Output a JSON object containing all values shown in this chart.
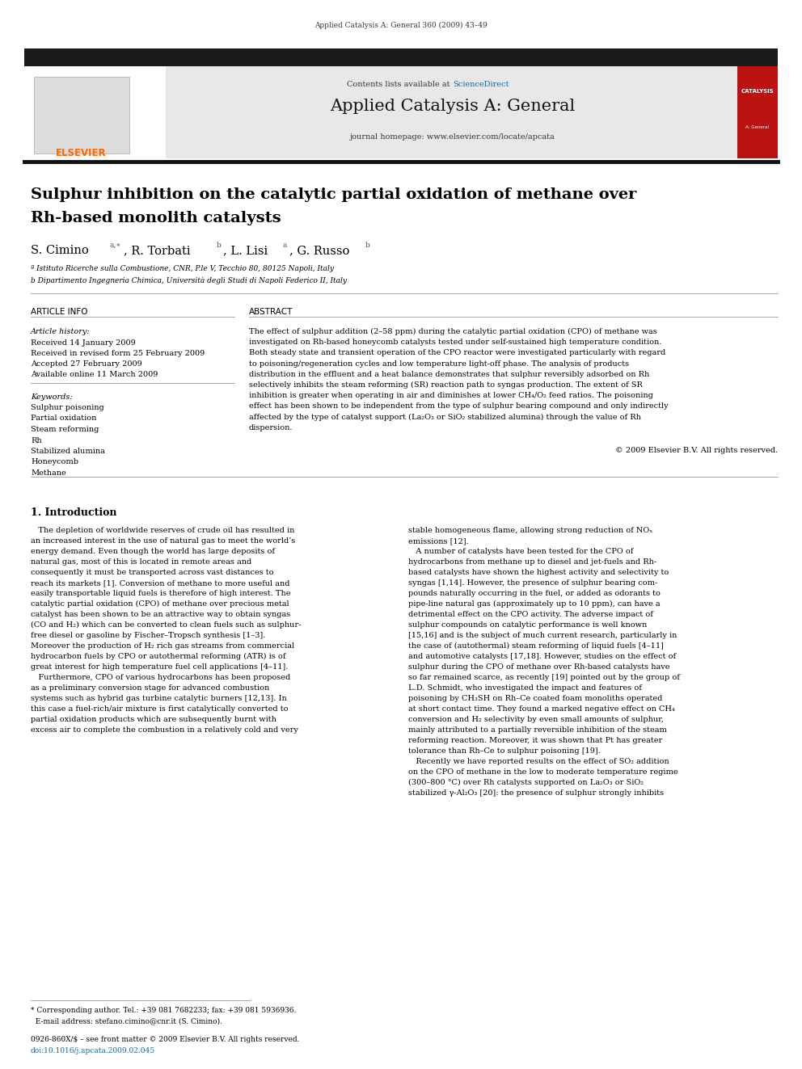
{
  "page_width": 9.92,
  "page_height": 13.23,
  "background_color": "#ffffff",
  "top_bar_color": "#1a1a1a",
  "header_bg_color": "#e8e8e8",
  "journal_title": "Applied Catalysis A: General",
  "journal_url": "journal homepage: www.elsevier.com/locate/apcata",
  "contents_text": "Contents lists available at ",
  "sciencedirect_text": "ScienceDirect",
  "sciencedirect_color": "#1a6496",
  "citation_text": "Applied Catalysis A: General 360 (2009) 43–49",
  "article_title_line1": "Sulphur inhibition on the catalytic partial oxidation of methane over",
  "article_title_line2": "Rh-based monolith catalysts",
  "affil_a": "ª Istituto Ricerche sulla Combustione, CNR, P.le V, Tecchio 80, 80125 Napoli, Italy",
  "affil_b": "b Dipartimento Ingegneria Chimica, Università degli Studi di Napoli Federico II, Italy",
  "article_info_header": "ARTICLE INFO",
  "abstract_header": "ABSTRACT",
  "article_history_label": "Article history:",
  "received": "Received 14 January 2009",
  "received_revised": "Received in revised form 25 February 2009",
  "accepted": "Accepted 27 February 2009",
  "available": "Available online 11 March 2009",
  "keywords_label": "Keywords:",
  "keywords": [
    "Sulphur poisoning",
    "Partial oxidation",
    "Steam reforming",
    "Rh",
    "Stabilized alumina",
    "Honeycomb",
    "Methane"
  ],
  "copyright_text": "© 2009 Elsevier B.V. All rights reserved.",
  "issn_text": "0926-860X/$ – see front matter © 2009 Elsevier B.V. All rights reserved.",
  "doi_text": "doi:10.1016/j.apcata.2009.02.045",
  "abstract_lines": [
    "The effect of sulphur addition (2–58 ppm) during the catalytic partial oxidation (CPO) of methane was",
    "investigated on Rh-based honeycomb catalysts tested under self-sustained high temperature condition.",
    "Both steady state and transient operation of the CPO reactor were investigated particularly with regard",
    "to poisoning/regeneration cycles and low temperature light-off phase. The analysis of products",
    "distribution in the effluent and a heat balance demonstrates that sulphur reversibly adsorbed on Rh",
    "selectively inhibits the steam reforming (SR) reaction path to syngas production. The extent of SR",
    "inhibition is greater when operating in air and diminishes at lower CH₄/O₂ feed ratios. The poisoning",
    "effect has been shown to be independent from the type of sulphur bearing compound and only indirectly",
    "affected by the type of catalyst support (La₂O₃ or SiO₂ stabilized alumina) through the value of Rh",
    "dispersion."
  ],
  "intro_col1_lines": [
    "   The depletion of worldwide reserves of crude oil has resulted in",
    "an increased interest in the use of natural gas to meet the world’s",
    "energy demand. Even though the world has large deposits of",
    "natural gas, most of this is located in remote areas and",
    "consequently it must be transported across vast distances to",
    "reach its markets [1]. Conversion of methane to more useful and",
    "easily transportable liquid fuels is therefore of high interest. The",
    "catalytic partial oxidation (CPO) of methane over precious metal",
    "catalyst has been shown to be an attractive way to obtain syngas",
    "(CO and H₂) which can be converted to clean fuels such as sulphur-",
    "free diesel or gasoline by Fischer–Tropsch synthesis [1–3].",
    "Moreover the production of H₂ rich gas streams from commercial",
    "hydrocarbon fuels by CPO or autothermal reforming (ATR) is of",
    "great interest for high temperature fuel cell applications [4–11].",
    "   Furthermore, CPO of various hydrocarbons has been proposed",
    "as a preliminary conversion stage for advanced combustion",
    "systems such as hybrid gas turbine catalytic burners [12,13]. In",
    "this case a fuel-rich/air mixture is first catalytically converted to",
    "partial oxidation products which are subsequently burnt with",
    "excess air to complete the combustion in a relatively cold and very"
  ],
  "intro_col2_lines": [
    "stable homogeneous flame, allowing strong reduction of NOₓ",
    "emissions [12].",
    "   A number of catalysts have been tested for the CPO of",
    "hydrocarbons from methane up to diesel and jet-fuels and Rh-",
    "based catalysts have shown the highest activity and selectivity to",
    "syngas [1,14]. However, the presence of sulphur bearing com-",
    "pounds naturally occurring in the fuel, or added as odorants to",
    "pipe-line natural gas (approximately up to 10 ppm), can have a",
    "detrimental effect on the CPO activity. The adverse impact of",
    "sulphur compounds on catalytic performance is well known",
    "[15,16] and is the subject of much current research, particularly in",
    "the case of (autothermal) steam reforming of liquid fuels [4–11]",
    "and automotive catalysts [17,18]. However, studies on the effect of",
    "sulphur during the CPO of methane over Rh-based catalysts have",
    "so far remained scarce, as recently [19] pointed out by the group of",
    "L.D. Schmidt, who investigated the impact and features of",
    "poisoning by CH₃SH on Rh–Ce coated foam monoliths operated",
    "at short contact time. They found a marked negative effect on CH₄",
    "conversion and H₂ selectivity by even small amounts of sulphur,",
    "mainly attributed to a partially reversible inhibition of the steam",
    "reforming reaction. Moreover, it was shown that Pt has greater",
    "tolerance than Rh–Ce to sulphur poisoning [19].",
    "   Recently we have reported results on the effect of SO₂ addition",
    "on the CPO of methane in the low to moderate temperature regime",
    "(300–800 °C) over Rh catalysts supported on La₂O₃ or SiO₂",
    "stabilized γ-Al₂O₃ [20]: the presence of sulphur strongly inhibits"
  ],
  "footer_lines": [
    "* Corresponding author. Tel.: +39 081 7682233; fax: +39 081 5936936.",
    "  E-mail address: stefano.cimino@cnr.it (S. Cimino)."
  ]
}
